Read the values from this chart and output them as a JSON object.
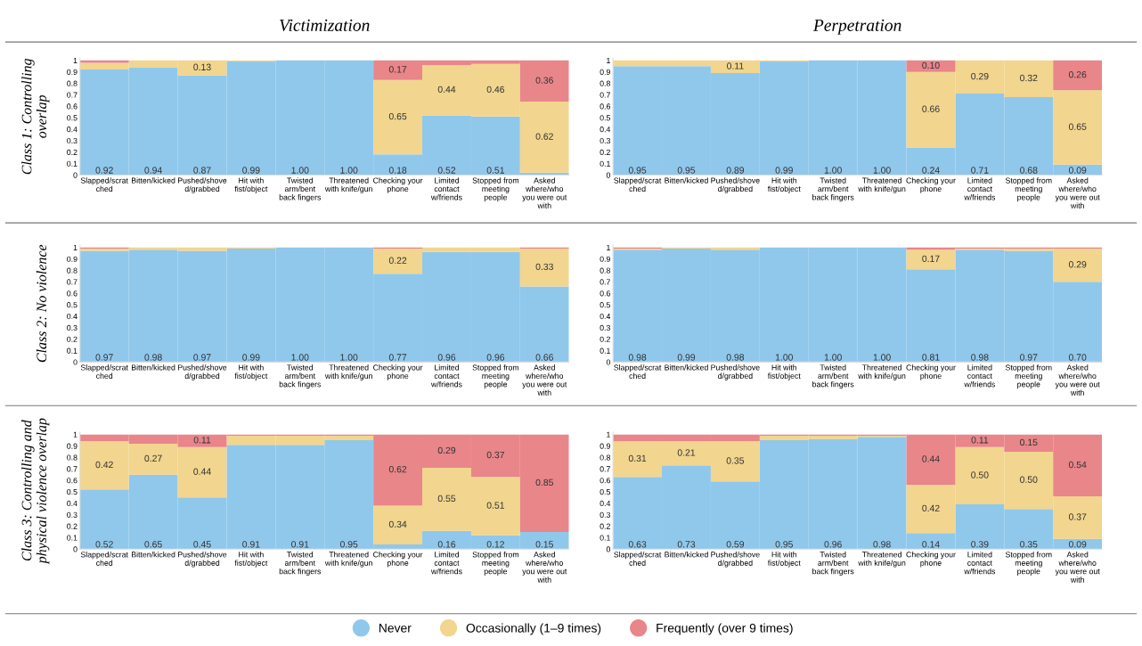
{
  "chart_data": [
    {
      "type": "bar",
      "stacked": true,
      "title": "Victimization",
      "ylabel": "Class 1: Controlling\noverlap",
      "legend": "bottom",
      "ylim": [
        0,
        1.02
      ],
      "yticks": [
        0,
        0.1,
        0.2,
        0.3,
        0.4,
        0.5,
        0.6,
        0.7,
        0.8,
        0.9,
        1
      ],
      "categories": [
        "Slapped/scrat\nched",
        "Bitten/kicked",
        "Pushed/shove\nd/grabbed",
        "Hit with\nfist/object",
        "Twisted\narm/bent\nback fingers",
        "Threatened\nwith knife/gun",
        "Checking your\nphone",
        "Limited\ncontact\nw/friends",
        "Stopped from\nmeeting\npeople",
        "Asked\nwhere/who\nyou were out\nwith"
      ],
      "series": [
        {
          "name": "Never",
          "color": "#90c8ec",
          "values": [
            0.92,
            0.94,
            0.87,
            0.99,
            1.0,
            1.0,
            0.18,
            0.52,
            0.51,
            0.02
          ],
          "value_labels": [
            "0.92",
            "0.94",
            "0.87",
            "0.99",
            "1.00",
            "1.00",
            "0.18",
            "0.52",
            "0.51",
            null
          ]
        },
        {
          "name": "Occasionally (1–9 times)",
          "color": "#f2d58e",
          "values": [
            0.06,
            0.06,
            0.13,
            0.01,
            0,
            0,
            0.65,
            0.44,
            0.46,
            0.62
          ],
          "value_labels": [
            null,
            null,
            "0.13",
            null,
            null,
            null,
            "0.65",
            "0.44",
            "0.46",
            "0.62"
          ]
        },
        {
          "name": "Frequently (over 9 times)",
          "color": "#e8868a",
          "values": [
            0.02,
            0,
            0,
            0,
            0,
            0,
            0.17,
            0.04,
            0.03,
            0.36
          ],
          "value_labels": [
            null,
            null,
            null,
            null,
            null,
            null,
            "0.17",
            null,
            null,
            "0.36"
          ]
        }
      ]
    },
    {
      "type": "bar",
      "stacked": true,
      "title": "Perpetration",
      "legend": "bottom",
      "ylim": [
        0,
        1.02
      ],
      "yticks": [
        0,
        0.1,
        0.2,
        0.3,
        0.4,
        0.5,
        0.6,
        0.7,
        0.8,
        0.9,
        1
      ],
      "categories": [
        "Slapped/scrat\nched",
        "Bitten/kicked",
        "Pushed/shove\nd/grabbed",
        "Hit with\nfist/object",
        "Twisted\narm/bent\nback fingers",
        "Threatened\nwith knife/gun",
        "Checking your\nphone",
        "Limited\ncontact\nw/friends",
        "Stopped from\nmeeting\npeople",
        "Asked\nwhere/who\nyou were out\nwith"
      ],
      "series": [
        {
          "name": "Never",
          "color": "#90c8ec",
          "values": [
            0.95,
            0.95,
            0.89,
            0.99,
            1.0,
            1.0,
            0.24,
            0.71,
            0.68,
            0.09
          ],
          "value_labels": [
            "0.95",
            "0.95",
            "0.89",
            "0.99",
            "1.00",
            "1.00",
            "0.24",
            "0.71",
            "0.68",
            "0.09"
          ]
        },
        {
          "name": "Occasionally (1–9 times)",
          "color": "#f2d58e",
          "values": [
            0.05,
            0.05,
            0.11,
            0.01,
            0,
            0,
            0.66,
            0.29,
            0.32,
            0.65
          ],
          "value_labels": [
            null,
            null,
            "0.11",
            null,
            null,
            null,
            "0.66",
            "0.29",
            "0.32",
            "0.65"
          ]
        },
        {
          "name": "Frequently (over 9 times)",
          "color": "#e8868a",
          "values": [
            0,
            0,
            0,
            0,
            0,
            0,
            0.1,
            0,
            0,
            0.26
          ],
          "value_labels": [
            null,
            null,
            null,
            null,
            null,
            null,
            "0.10",
            null,
            null,
            "0.26"
          ]
        }
      ]
    },
    {
      "type": "bar",
      "stacked": true,
      "ylabel": "Class 2: No violence",
      "legend": "bottom",
      "ylim": [
        0,
        1.02
      ],
      "yticks": [
        0,
        0.1,
        0.2,
        0.3,
        0.4,
        0.5,
        0.6,
        0.7,
        0.8,
        0.9,
        1
      ],
      "categories": [
        "Slapped/scrat\nched",
        "Bitten/kicked",
        "Pushed/shove\nd/grabbed",
        "Hit with\nfist/object",
        "Twisted\narm/bent\nback fingers",
        "Threatened\nwith knife/gun",
        "Checking your\nphone",
        "Limited\ncontact\nw/friends",
        "Stopped from\nmeeting\npeople",
        "Asked\nwhere/who\nyou were out\nwith"
      ],
      "series": [
        {
          "name": "Never",
          "color": "#90c8ec",
          "values": [
            0.97,
            0.98,
            0.97,
            0.99,
            1.0,
            1.0,
            0.77,
            0.96,
            0.96,
            0.66
          ],
          "value_labels": [
            "0.97",
            "0.98",
            "0.97",
            "0.99",
            "1.00",
            "1.00",
            "0.77",
            "0.96",
            "0.96",
            "0.66"
          ]
        },
        {
          "name": "Occasionally (1–9 times)",
          "color": "#f2d58e",
          "values": [
            0.02,
            0.02,
            0.03,
            0.01,
            0,
            0,
            0.22,
            0.04,
            0.04,
            0.33
          ],
          "value_labels": [
            null,
            null,
            null,
            null,
            null,
            null,
            "0.22",
            null,
            null,
            "0.33"
          ]
        },
        {
          "name": "Frequently (over 9 times)",
          "color": "#e8868a",
          "values": [
            0.01,
            0,
            0,
            0,
            0,
            0,
            0.01,
            0,
            0,
            0.01
          ],
          "value_labels": [
            null,
            null,
            null,
            null,
            null,
            null,
            null,
            null,
            null,
            null
          ]
        }
      ]
    },
    {
      "type": "bar",
      "stacked": true,
      "legend": "bottom",
      "ylim": [
        0,
        1.02
      ],
      "yticks": [
        0,
        0.1,
        0.2,
        0.3,
        0.4,
        0.5,
        0.6,
        0.7,
        0.8,
        0.9,
        1
      ],
      "categories": [
        "Slapped/scrat\nched",
        "Bitten/kicked",
        "Pushed/shove\nd/grabbed",
        "Hit with\nfist/object",
        "Twisted\narm/bent\nback fingers",
        "Threatened\nwith knife/gun",
        "Checking your\nphone",
        "Limited\ncontact\nw/friends",
        "Stopped from\nmeeting\npeople",
        "Asked\nwhere/who\nyou were out\nwith"
      ],
      "series": [
        {
          "name": "Never",
          "color": "#90c8ec",
          "values": [
            0.98,
            0.99,
            0.98,
            1.0,
            1.0,
            1.0,
            0.81,
            0.98,
            0.97,
            0.7
          ],
          "value_labels": [
            "0.98",
            "0.99",
            "0.98",
            "1.00",
            "1.00",
            "1.00",
            "0.81",
            "0.98",
            "0.97",
            "0.70"
          ]
        },
        {
          "name": "Occasionally (1–9 times)",
          "color": "#f2d58e",
          "values": [
            0.01,
            0.01,
            0.02,
            0,
            0,
            0,
            0.17,
            0.01,
            0.02,
            0.29
          ],
          "value_labels": [
            null,
            null,
            null,
            null,
            null,
            null,
            "0.17",
            null,
            null,
            "0.29"
          ]
        },
        {
          "name": "Frequently (over 9 times)",
          "color": "#e8868a",
          "values": [
            0.01,
            0,
            0,
            0,
            0,
            0,
            0.02,
            0.01,
            0.01,
            0.01
          ],
          "value_labels": [
            null,
            null,
            null,
            null,
            null,
            null,
            null,
            null,
            null,
            null
          ]
        }
      ]
    },
    {
      "type": "bar",
      "stacked": true,
      "ylabel": "Class 3: Controlling and\nphysical violence overlap",
      "legend": "bottom",
      "ylim": [
        0,
        1.02
      ],
      "yticks": [
        0,
        0.1,
        0.2,
        0.3,
        0.4,
        0.5,
        0.6,
        0.7,
        0.8,
        0.9,
        1
      ],
      "categories": [
        "Slapped/scrat\nched",
        "Bitten/kicked",
        "Pushed/shove\nd/grabbed",
        "Hit with\nfist/object",
        "Twisted\narm/bent\nback fingers",
        "Threatened\nwith knife/gun",
        "Checking your\nphone",
        "Limited\ncontact\nw/friends",
        "Stopped from\nmeeting\npeople",
        "Asked\nwhere/who\nyou were out\nwith"
      ],
      "series": [
        {
          "name": "Never",
          "color": "#90c8ec",
          "values": [
            0.52,
            0.65,
            0.45,
            0.91,
            0.91,
            0.95,
            0.04,
            0.16,
            0.12,
            0.15
          ],
          "value_labels": [
            "0.52",
            "0.65",
            "0.45",
            "0.91",
            "0.91",
            "0.95",
            null,
            "0.16",
            "0.12",
            "0.15"
          ]
        },
        {
          "name": "Occasionally (1–9 times)",
          "color": "#f2d58e",
          "values": [
            0.42,
            0.27,
            0.44,
            0.08,
            0.08,
            0.04,
            0.34,
            0.55,
            0.51,
            0
          ],
          "value_labels": [
            "0.42",
            "0.27",
            "0.44",
            null,
            null,
            null,
            "0.34",
            "0.55",
            "0.51",
            null
          ]
        },
        {
          "name": "Frequently (over 9 times)",
          "color": "#e8868a",
          "values": [
            0.06,
            0.08,
            0.11,
            0.01,
            0.01,
            0.01,
            0.62,
            0.29,
            0.37,
            0.85
          ],
          "value_labels": [
            null,
            null,
            "0.11",
            null,
            null,
            null,
            "0.62",
            "0.29",
            "0.37",
            "0.85"
          ]
        }
      ]
    },
    {
      "type": "bar",
      "stacked": true,
      "legend": "bottom",
      "ylim": [
        0,
        1.02
      ],
      "yticks": [
        0,
        0.1,
        0.2,
        0.3,
        0.4,
        0.5,
        0.6,
        0.7,
        0.8,
        0.9,
        1
      ],
      "categories": [
        "Slapped/scrat\nched",
        "Bitten/kicked",
        "Pushed/shove\nd/grabbed",
        "Hit with\nfist/object",
        "Twisted\narm/bent\nback fingers",
        "Threatened\nwith knife/gun",
        "Checking your\nphone",
        "Limited\ncontact\nw/friends",
        "Stopped from\nmeeting\npeople",
        "Asked\nwhere/who\nyou were out\nwith"
      ],
      "series": [
        {
          "name": "Never",
          "color": "#90c8ec",
          "values": [
            0.63,
            0.73,
            0.59,
            0.95,
            0.96,
            0.98,
            0.14,
            0.39,
            0.35,
            0.09
          ],
          "value_labels": [
            "0.63",
            "0.73",
            "0.59",
            "0.95",
            "0.96",
            "0.98",
            "0.14",
            "0.39",
            "0.35",
            "0.09"
          ]
        },
        {
          "name": "Occasionally (1–9 times)",
          "color": "#f2d58e",
          "values": [
            0.31,
            0.21,
            0.35,
            0.04,
            0.03,
            0.01,
            0.42,
            0.5,
            0.5,
            0.37
          ],
          "value_labels": [
            "0.31",
            "0.21",
            "0.35",
            null,
            null,
            null,
            "0.42",
            "0.50",
            "0.50",
            "0.37"
          ]
        },
        {
          "name": "Frequently (over 9 times)",
          "color": "#e8868a",
          "values": [
            0.06,
            0.06,
            0.06,
            0.01,
            0.01,
            0.01,
            0.44,
            0.11,
            0.15,
            0.54
          ],
          "value_labels": [
            null,
            null,
            null,
            null,
            null,
            null,
            "0.44",
            "0.11",
            "0.15",
            "0.54"
          ]
        }
      ]
    }
  ]
}
